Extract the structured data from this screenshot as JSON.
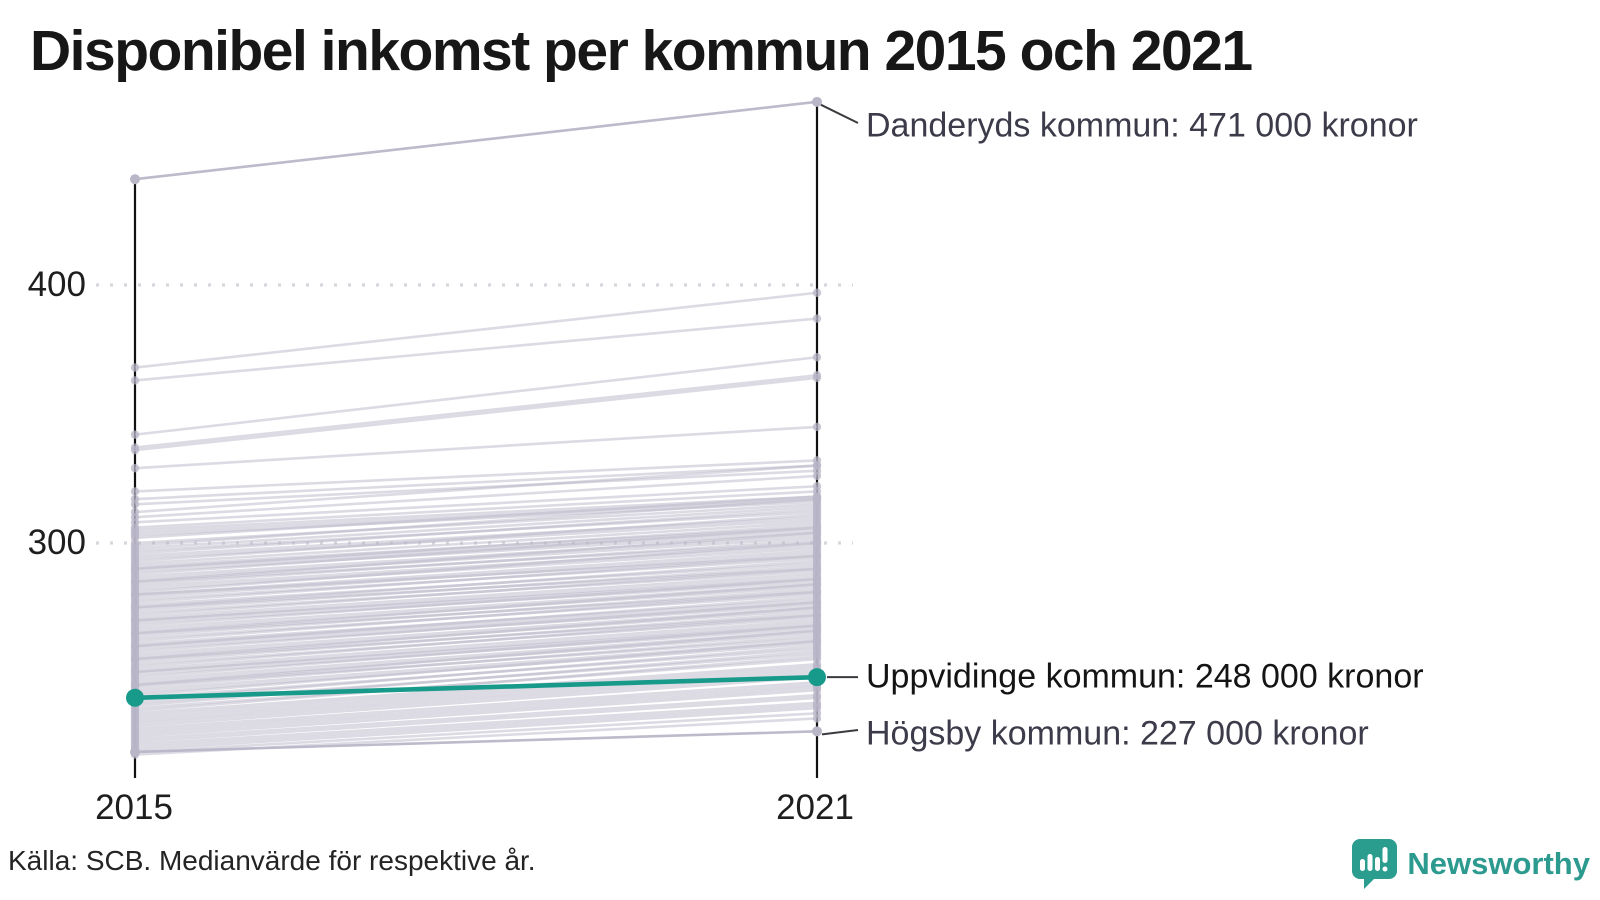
{
  "title": "Disponibel inkomst per kommun 2015 och 2021",
  "y_axis": {
    "tick_400": "400",
    "tick_300": "300"
  },
  "x_axis": {
    "tick_2015": "2015",
    "tick_2021": "2021"
  },
  "annotations": {
    "danderyd": "Danderyds kommun: 471 000 kronor",
    "uppvidinge": "Uppvidinge kommun: 248 000 kronor",
    "hogsby": "Högsby kommun: 227 000 kronor"
  },
  "source": "Källa: SCB. Medianvärde för respektive år.",
  "branding": {
    "name": "Newsworthy"
  },
  "colors": {
    "highlight_line": "#189a8b",
    "background_line": "#b9b6c8",
    "gridline": "#d8d7de",
    "axis": "#111111",
    "annotation_text": "#3b3b4a",
    "highlight_annotation_text": "#141414",
    "logo_teal": "#2a9d8f"
  },
  "chart_data": {
    "type": "line",
    "subtype": "slope",
    "title": "Disponibel inkomst per kommun 2015 och 2021",
    "x": [
      2015,
      2021
    ],
    "unit": "tusen kronor",
    "ylim": [
      215,
      480
    ],
    "y_gridlines": [
      300,
      400
    ],
    "grid": "dotted",
    "highlighted_series": [
      {
        "name": "Danderyds kommun",
        "values": [
          441,
          471
        ],
        "style": "gray",
        "label": "Danderyds kommun: 471 000 kronor"
      },
      {
        "name": "Uppvidinge kommun",
        "values": [
          240,
          248
        ],
        "style": "highlight",
        "label": "Uppvidinge kommun: 248 000 kronor"
      },
      {
        "name": "Högsby kommun",
        "values": [
          219,
          227
        ],
        "style": "gray",
        "label": "Högsby kommun: 227 000 kronor"
      }
    ],
    "background_series": [
      [
        368,
        397
      ],
      [
        363,
        387
      ],
      [
        342,
        372
      ],
      [
        337,
        365
      ],
      [
        336,
        364
      ],
      [
        329,
        345
      ],
      [
        320,
        332
      ],
      [
        317,
        330
      ],
      [
        315,
        328
      ],
      [
        312,
        330
      ],
      [
        310,
        326
      ],
      [
        308,
        322
      ],
      [
        306,
        320
      ],
      [
        305,
        318
      ],
      [
        304,
        317
      ],
      [
        303,
        316
      ],
      [
        302,
        318
      ],
      [
        300,
        315
      ],
      [
        299,
        317
      ],
      [
        298,
        314
      ],
      [
        297,
        312
      ],
      [
        296,
        313
      ],
      [
        295,
        310
      ],
      [
        294,
        309
      ],
      [
        293,
        311
      ],
      [
        292,
        308
      ],
      [
        291,
        306
      ],
      [
        290,
        307
      ],
      [
        290,
        305
      ],
      [
        289,
        304
      ],
      [
        288,
        306
      ],
      [
        287,
        303
      ],
      [
        286,
        302
      ],
      [
        285,
        304
      ],
      [
        285,
        300
      ],
      [
        284,
        301
      ],
      [
        283,
        299
      ],
      [
        282,
        298
      ],
      [
        281,
        300
      ],
      [
        280,
        297
      ],
      [
        280,
        295
      ],
      [
        279,
        296
      ],
      [
        278,
        294
      ],
      [
        277,
        295
      ],
      [
        276,
        292
      ],
      [
        275,
        293
      ],
      [
        275,
        290
      ],
      [
        274,
        291
      ],
      [
        273,
        289
      ],
      [
        272,
        290
      ],
      [
        271,
        288
      ],
      [
        270,
        287
      ],
      [
        270,
        286
      ],
      [
        269,
        285
      ],
      [
        268,
        286
      ],
      [
        267,
        284
      ],
      [
        266,
        283
      ],
      [
        265,
        284
      ],
      [
        265,
        281
      ],
      [
        264,
        282
      ],
      [
        263,
        280
      ],
      [
        262,
        281
      ],
      [
        261,
        278
      ],
      [
        260,
        279
      ],
      [
        260,
        277
      ],
      [
        259,
        276
      ],
      [
        258,
        277
      ],
      [
        257,
        275
      ],
      [
        256,
        274
      ],
      [
        255,
        275
      ],
      [
        255,
        272
      ],
      [
        254,
        273
      ],
      [
        253,
        271
      ],
      [
        252,
        272
      ],
      [
        251,
        270
      ],
      [
        250,
        269
      ],
      [
        250,
        268
      ],
      [
        249,
        267
      ],
      [
        248,
        268
      ],
      [
        247,
        266
      ],
      [
        246,
        265
      ],
      [
        245,
        266
      ],
      [
        245,
        263
      ],
      [
        244,
        264
      ],
      [
        243,
        262
      ],
      [
        242,
        261
      ],
      [
        241,
        262
      ],
      [
        240,
        259
      ],
      [
        239,
        260
      ],
      [
        238,
        257
      ],
      [
        237,
        258
      ],
      [
        236,
        255
      ],
      [
        235,
        256
      ],
      [
        234,
        253
      ],
      [
        233,
        252
      ],
      [
        232,
        251
      ],
      [
        231,
        250
      ],
      [
        230,
        249
      ],
      [
        229,
        248
      ],
      [
        228,
        246
      ],
      [
        227,
        245
      ],
      [
        226,
        244
      ],
      [
        225,
        243
      ],
      [
        224,
        241
      ],
      [
        223,
        240
      ],
      [
        222,
        238
      ],
      [
        221,
        237
      ],
      [
        220,
        236
      ],
      [
        219,
        234
      ],
      [
        218,
        232
      ]
    ]
  }
}
